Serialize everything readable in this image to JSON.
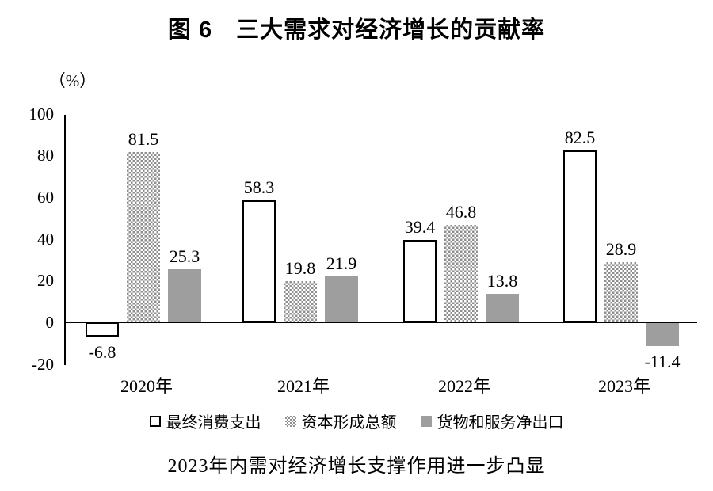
{
  "figure": {
    "title": "图 6　三大需求对经济增长的贡献率",
    "unit_label": "（%）",
    "caption": "2023年内需对经济增长支撑作用进一步凸显"
  },
  "chart_data": {
    "type": "bar",
    "title": "图 6　三大需求对经济增长的贡献率",
    "unit": "%",
    "categories": [
      "2020年",
      "2021年",
      "2022年",
      "2023年"
    ],
    "series": [
      {
        "name": "最终消费支出",
        "style": "hollow",
        "values": [
          -6.8,
          58.3,
          39.4,
          82.5
        ]
      },
      {
        "name": "资本形成总额",
        "style": "dotted",
        "values": [
          81.5,
          19.8,
          46.8,
          28.9
        ]
      },
      {
        "name": "货物和服务净出口",
        "style": "solid",
        "values": [
          25.3,
          21.9,
          13.8,
          -11.4
        ]
      }
    ],
    "y_ticks": [
      100,
      80,
      60,
      40,
      20,
      0,
      -20
    ],
    "ylim": [
      -20,
      100
    ],
    "grid": false,
    "legend_position": "bottom",
    "value_labels_shown": true
  },
  "colors": {
    "background": "#ffffff",
    "axis": "#000000",
    "text": "#000000",
    "solid_bar_gray": "#9e9e9e",
    "dot_pattern_gray": "#8f8f8f"
  }
}
